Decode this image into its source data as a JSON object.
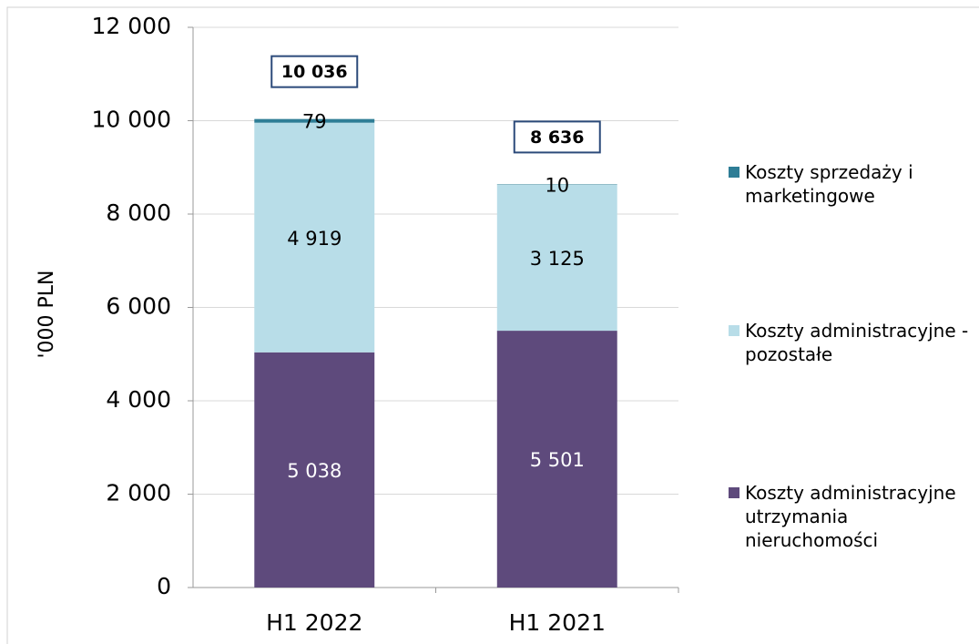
{
  "chart_data": {
    "type": "stacked_bar",
    "y_label": "'000 PLN",
    "categories": [
      "H1 2022",
      "H1 2021"
    ],
    "series": [
      {
        "name": "Koszty administracyjne utrzymania nieruchomości",
        "color": "#5e4a7c",
        "label_color": "#ffffff",
        "values": [
          5038,
          5501
        ],
        "value_labels": [
          "5 038",
          "5 501"
        ]
      },
      {
        "name": "Koszty administracyjne - pozostałe",
        "color": "#b8dde8",
        "label_color": "#000000",
        "values": [
          4919,
          3125
        ],
        "value_labels": [
          "4 919",
          "3 125"
        ]
      },
      {
        "name": "Koszty sprzedaży i marketingowe",
        "color": "#2e7d96",
        "label_color": "#000000",
        "values": [
          79,
          10
        ]
      }
    ],
    "totals": [
      10036,
      8636
    ],
    "total_labels": [
      "10 036",
      "8 636"
    ],
    "ylim": [
      0,
      12000
    ],
    "yticks": [
      0,
      {
        "value": 2000,
        "label": "2 000"
      },
      {
        "value": 4000,
        "label": "4 000"
      },
      {
        "value": 6000,
        "label": "6 000"
      },
      {
        "value": 8000,
        "label": "8 000"
      },
      {
        "value": 10000,
        "label": "10 000"
      },
      {
        "value": 12000,
        "label": "12 000"
      }
    ],
    "grid": true
  }
}
